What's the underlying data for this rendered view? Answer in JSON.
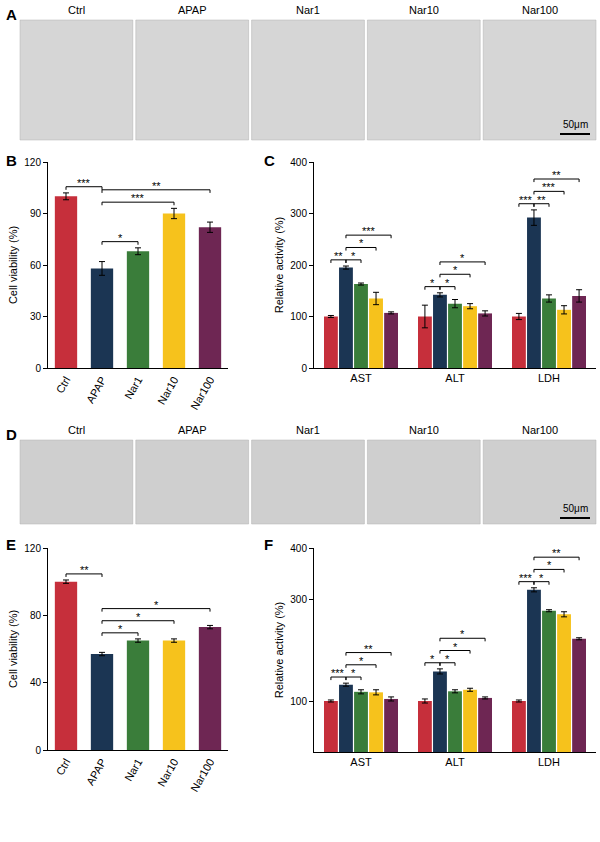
{
  "chart_data": [
    {
      "type": "image",
      "panel": "A",
      "categories": [
        "Ctrl",
        "APAP",
        "Nar1",
        "Nar10",
        "Nar100"
      ],
      "scale_bar": "50μm",
      "color": "#d6d6d6"
    },
    {
      "type": "bar",
      "panel": "B",
      "categories": [
        "Ctrl",
        "APAP",
        "Nar1",
        "Nar10",
        "Nar100"
      ],
      "values": [
        100,
        58,
        68,
        90,
        82
      ],
      "errors": [
        2,
        4,
        2,
        3,
        3
      ],
      "colors": [
        "#c62f3b",
        "#1b3553",
        "#3a7d3a",
        "#f6c21c",
        "#6e2653"
      ],
      "y_label": "Cell viability (%)",
      "ylim": [
        0,
        120
      ],
      "yticks": [
        0,
        30,
        60,
        90,
        120
      ],
      "significance": [
        {
          "from": "Ctrl",
          "to": "APAP",
          "label": "***"
        },
        {
          "from": "APAP",
          "to": "Nar1",
          "label": "*"
        },
        {
          "from": "APAP",
          "to": "Nar10",
          "label": "***"
        },
        {
          "from": "APAP",
          "to": "Nar100",
          "label": "**"
        }
      ]
    },
    {
      "type": "bar",
      "panel": "C",
      "categories": [
        "AST",
        "ALT",
        "LDH"
      ],
      "series": [
        {
          "name": "Ctrl",
          "color": "#c62f3b",
          "values": [
            100,
            100,
            100
          ],
          "errors": [
            2,
            22,
            6
          ]
        },
        {
          "name": "APAP",
          "color": "#1b3553",
          "values": [
            195,
            142,
            292
          ],
          "errors": [
            3,
            4,
            15
          ]
        },
        {
          "name": "Nar1",
          "color": "#3a7d3a",
          "values": [
            163,
            125,
            135
          ],
          "errors": [
            2,
            8,
            7
          ]
        },
        {
          "name": "Nar10",
          "color": "#f6c21c",
          "values": [
            135,
            120,
            113
          ],
          "errors": [
            12,
            5,
            8
          ]
        },
        {
          "name": "Nar100",
          "color": "#6e2653",
          "values": [
            107,
            106,
            140
          ],
          "errors": [
            2,
            5,
            12
          ]
        }
      ],
      "y_label": "Relative activity (%)",
      "ylim": [
        0,
        400
      ],
      "yticks": [
        0,
        100,
        200,
        300,
        400
      ],
      "significance": [
        {
          "category": "AST",
          "from": "Ctrl",
          "to": "APAP",
          "label": "**"
        },
        {
          "category": "AST",
          "from": "APAP",
          "to": "Nar1",
          "label": "*"
        },
        {
          "category": "AST",
          "from": "APAP",
          "to": "Nar10",
          "label": "*"
        },
        {
          "category": "AST",
          "from": "APAP",
          "to": "Nar100",
          "label": "***"
        },
        {
          "category": "ALT",
          "from": "Ctrl",
          "to": "APAP",
          "label": "*"
        },
        {
          "category": "ALT",
          "from": "APAP",
          "to": "Nar1",
          "label": "*"
        },
        {
          "category": "ALT",
          "from": "APAP",
          "to": "Nar10",
          "label": "*"
        },
        {
          "category": "ALT",
          "from": "APAP",
          "to": "Nar100",
          "label": "*"
        },
        {
          "category": "LDH",
          "from": "Ctrl",
          "to": "APAP",
          "label": "***"
        },
        {
          "category": "LDH",
          "from": "APAP",
          "to": "Nar1",
          "label": "**"
        },
        {
          "category": "LDH",
          "from": "APAP",
          "to": "Nar10",
          "label": "***"
        },
        {
          "category": "LDH",
          "from": "APAP",
          "to": "Nar100",
          "label": "**"
        }
      ]
    },
    {
      "type": "image",
      "panel": "D",
      "categories": [
        "Ctrl",
        "APAP",
        "Nar1",
        "Nar10",
        "Nar100"
      ],
      "scale_bar": "50μm",
      "color": "#cfcfcf"
    },
    {
      "type": "bar",
      "panel": "E",
      "categories": [
        "Ctrl",
        "APAP",
        "Nar1",
        "Nar10",
        "Nar100"
      ],
      "values": [
        100,
        57,
        65,
        65,
        73
      ],
      "errors": [
        1,
        1,
        1,
        1,
        1
      ],
      "colors": [
        "#c62f3b",
        "#1b3553",
        "#3a7d3a",
        "#f6c21c",
        "#6e2653"
      ],
      "y_label": "Cell viability (%)",
      "ylim": [
        0,
        120
      ],
      "yticks": [
        0,
        40,
        80,
        120
      ],
      "significance": [
        {
          "from": "Ctrl",
          "to": "APAP",
          "label": "**"
        },
        {
          "from": "APAP",
          "to": "Nar1",
          "label": "*"
        },
        {
          "from": "APAP",
          "to": "Nar10",
          "label": "*"
        },
        {
          "from": "APAP",
          "to": "Nar100",
          "label": "*"
        }
      ]
    },
    {
      "type": "bar",
      "panel": "F",
      "categories": [
        "AST",
        "ALT",
        "LDH"
      ],
      "series": [
        {
          "name": "Ctrl",
          "color": "#c62f3b",
          "values": [
            100,
            100,
            100
          ],
          "errors": [
            2,
            4,
            2
          ]
        },
        {
          "name": "APAP",
          "color": "#1b3553",
          "values": [
            132,
            158,
            318
          ],
          "errors": [
            3,
            5,
            4
          ]
        },
        {
          "name": "Nar1",
          "color": "#3a7d3a",
          "values": [
            118,
            119,
            277
          ],
          "errors": [
            4,
            3,
            2
          ]
        },
        {
          "name": "Nar10",
          "color": "#f6c21c",
          "values": [
            117,
            122,
            270
          ],
          "errors": [
            5,
            3,
            5
          ]
        },
        {
          "name": "Nar100",
          "color": "#6e2653",
          "values": [
            104,
            106,
            222
          ],
          "errors": [
            4,
            2,
            2
          ]
        }
      ],
      "y_label": "Relative activity (%)",
      "ylim": [
        0,
        400
      ],
      "yticks": [
        100,
        300,
        400
      ],
      "significance": [
        {
          "category": "AST",
          "from": "Ctrl",
          "to": "APAP",
          "label": "***"
        },
        {
          "category": "AST",
          "from": "APAP",
          "to": "Nar1",
          "label": "*"
        },
        {
          "category": "AST",
          "from": "APAP",
          "to": "Nar10",
          "label": "*"
        },
        {
          "category": "AST",
          "from": "APAP",
          "to": "Nar100",
          "label": "**"
        },
        {
          "category": "ALT",
          "from": "Ctrl",
          "to": "APAP",
          "label": "*"
        },
        {
          "category": "ALT",
          "from": "APAP",
          "to": "Nar1",
          "label": "*"
        },
        {
          "category": "ALT",
          "from": "APAP",
          "to": "Nar10",
          "label": "*"
        },
        {
          "category": "ALT",
          "from": "APAP",
          "to": "Nar100",
          "label": "*"
        },
        {
          "category": "LDH",
          "from": "Ctrl",
          "to": "APAP",
          "label": "***"
        },
        {
          "category": "LDH",
          "from": "APAP",
          "to": "Nar1",
          "label": "*"
        },
        {
          "category": "LDH",
          "from": "APAP",
          "to": "Nar10",
          "label": "*"
        },
        {
          "category": "LDH",
          "from": "APAP",
          "to": "Nar100",
          "label": "**"
        }
      ]
    }
  ]
}
